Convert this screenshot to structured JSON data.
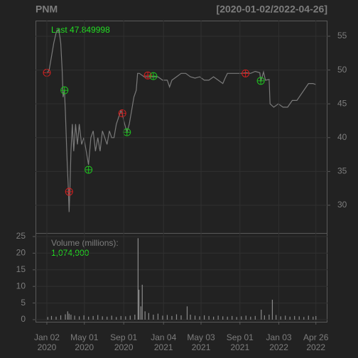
{
  "chart_data": [
    {
      "type": "line",
      "title": "PNM",
      "subtitle": "[2020-01-02/2022-04-26]",
      "annotation": "Last 47.849998",
      "x": [
        0,
        5,
        10,
        15,
        20,
        25,
        28,
        30,
        33,
        35,
        38,
        40,
        42,
        44,
        46,
        48,
        50,
        52,
        55,
        58,
        62,
        66,
        70,
        75,
        80,
        85,
        90,
        95,
        100,
        105,
        110,
        115,
        120,
        125,
        130,
        135,
        140,
        145,
        150,
        155,
        160,
        163,
        168,
        173,
        178,
        183,
        188,
        193,
        196,
        200,
        210,
        220,
        230,
        240,
        250,
        260,
        265,
        270,
        280,
        290,
        300,
        310,
        320,
        330,
        340,
        350,
        360,
        370,
        380,
        385,
        390,
        400,
        410,
        420,
        430,
        440,
        450,
        460,
        462,
        468,
        472,
        480,
        482,
        490,
        500,
        510,
        520,
        530,
        540,
        550,
        560,
        565,
        575,
        581
      ],
      "series": [
        {
          "name": "PNM",
          "color": "#7a7a7a",
          "values": [
            49.5,
            50,
            52,
            54,
            55.5,
            56,
            55,
            54,
            50,
            46,
            47,
            44,
            40,
            36,
            33,
            29,
            33,
            38,
            42,
            38,
            42,
            39,
            42,
            39,
            40,
            38,
            36,
            40,
            41,
            38,
            40,
            38,
            41,
            40,
            39,
            41,
            40,
            40,
            42,
            43,
            44,
            43.5,
            42,
            40.8,
            42,
            44,
            46,
            47,
            49.5,
            49.5,
            49,
            49,
            49,
            49,
            48.5,
            48.5,
            47.5,
            48.5,
            49,
            49.5,
            49.5,
            49,
            48.8,
            49,
            48.5,
            48.5,
            49,
            48.5,
            48,
            48.8,
            49.5,
            49.5,
            49.5,
            49.5,
            49.6,
            49.5,
            49.8,
            49.6,
            48.3,
            49.7,
            48.5,
            48.6,
            45,
            44.5,
            45,
            44.5,
            44.5,
            45.5,
            45.5,
            46.5,
            47.5,
            48,
            48,
            47.85
          ]
        }
      ],
      "signals": [
        {
          "x": 0,
          "value": 49.6,
          "color": "#d02020"
        },
        {
          "x": 38,
          "value": 47,
          "color": "#20c020"
        },
        {
          "x": 48,
          "value": 32,
          "color": "#d02020"
        },
        {
          "x": 90,
          "value": 35.25,
          "color": "#20c020"
        },
        {
          "x": 163,
          "value": 43.6,
          "color": "#d02020"
        },
        {
          "x": 173,
          "value": 40.8,
          "color": "#20c020"
        },
        {
          "x": 218,
          "value": 49.2,
          "color": "#d02020"
        },
        {
          "x": 230,
          "value": 49.1,
          "color": "#20c020"
        },
        {
          "x": 429,
          "value": 49.5,
          "color": "#d02020"
        },
        {
          "x": 462,
          "value": 48.4,
          "color": "#20c020"
        }
      ],
      "xlim": [
        -24.5,
        606
      ],
      "ylim": [
        25.9,
        57.31
      ],
      "yticks": [
        30,
        35,
        40,
        45,
        50,
        55
      ],
      "grid": true
    },
    {
      "type": "bar",
      "annotation": "Volume (millions):",
      "value_label": "1,074,900",
      "x": [
        2,
        10,
        20,
        30,
        40,
        45,
        48,
        52,
        60,
        70,
        80,
        90,
        100,
        110,
        120,
        130,
        140,
        150,
        160,
        170,
        180,
        190,
        197,
        199,
        203,
        206,
        212,
        220,
        230,
        240,
        250,
        260,
        270,
        280,
        290,
        303,
        310,
        320,
        330,
        340,
        350,
        360,
        370,
        380,
        390,
        400,
        410,
        420,
        430,
        440,
        450,
        463,
        470,
        480,
        487,
        495,
        505,
        515,
        525,
        535,
        545,
        555,
        565,
        575,
        581
      ],
      "series": [
        {
          "name": "Volume",
          "color": "#8a8a8a",
          "values": [
            0.8,
            1.1,
            0.9,
            1.3,
            1.6,
            2.5,
            1.8,
            1.5,
            1.2,
            1.0,
            1.3,
            0.9,
            1.1,
            1.4,
            1.0,
            0.9,
            1.2,
            0.8,
            1.1,
            1.0,
            1.2,
            1.5,
            24.5,
            9,
            4,
            10.5,
            2.5,
            2,
            1.5,
            1.8,
            1.2,
            1.4,
            1.1,
            1.6,
            1.3,
            4,
            1.5,
            1.2,
            1.0,
            1.3,
            1.1,
            0.9,
            1.2,
            1.0,
            0.9,
            1.1,
            0.8,
            1.0,
            1.2,
            0.9,
            1.1,
            3,
            1.3,
            1.5,
            6,
            1.4,
            1.0,
            1.2,
            0.9,
            1.1,
            1.0,
            0.8,
            1.2,
            0.9,
            1.07
          ]
        }
      ],
      "xlim": [
        -24.5,
        606
      ],
      "ylim": [
        -0.64,
        26.07
      ],
      "yticks": [
        0,
        5,
        10,
        15,
        20,
        25
      ],
      "xticks": [
        {
          "value": 0,
          "label": "Jan 02",
          "year": "2020"
        },
        {
          "value": 81,
          "label": "May 01",
          "year": "2020"
        },
        {
          "value": 166,
          "label": "Sep 01",
          "year": "2020"
        },
        {
          "value": 252,
          "label": "Jan 04",
          "year": "2021"
        },
        {
          "value": 333,
          "label": "May 03",
          "year": "2021"
        },
        {
          "value": 417,
          "label": "Sep 01",
          "year": "2021"
        },
        {
          "value": 501,
          "label": "Jan 03",
          "year": "2022"
        },
        {
          "value": 581,
          "label": "Apr 26",
          "year": "2022"
        }
      ],
      "grid": true
    }
  ]
}
